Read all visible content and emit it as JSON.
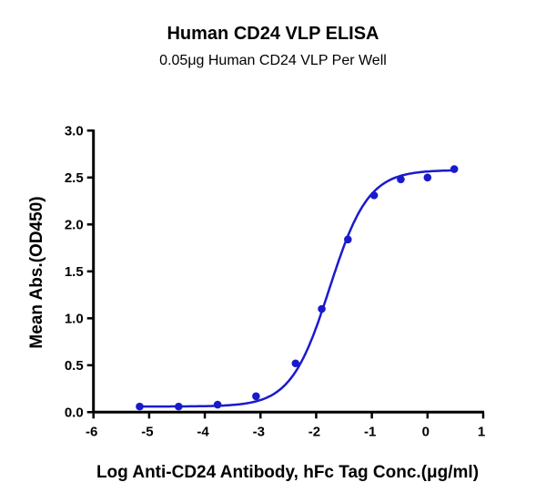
{
  "chart_data": {
    "type": "scatter",
    "title": "Human CD24 VLP ELISA",
    "subtitle": "0.05μg Human CD24 VLP Per Well",
    "xlabel": "Log Anti-CD24 Antibody, hFc Tag Conc.(μg/ml)",
    "ylabel": "Mean Abs.(OD450)",
    "xlim": [
      -6,
      1
    ],
    "ylim": [
      0,
      3.0
    ],
    "xticks": [
      "-6",
      "-5",
      "-4",
      "-3",
      "-2",
      "-1",
      "0",
      "1"
    ],
    "yticks": [
      "0.0",
      "0.5",
      "1.0",
      "1.5",
      "2.0",
      "2.5",
      "3.0"
    ],
    "grid": false,
    "fit": "sigmoidal curve",
    "color": "#1a1acc",
    "x": [
      -5.17,
      -4.47,
      -3.77,
      -3.08,
      -2.37,
      -1.9,
      -1.43,
      -0.96,
      -0.48,
      0.0,
      0.48
    ],
    "y": [
      0.06,
      0.06,
      0.08,
      0.17,
      0.52,
      1.1,
      1.84,
      2.31,
      2.48,
      2.5,
      2.59
    ]
  }
}
